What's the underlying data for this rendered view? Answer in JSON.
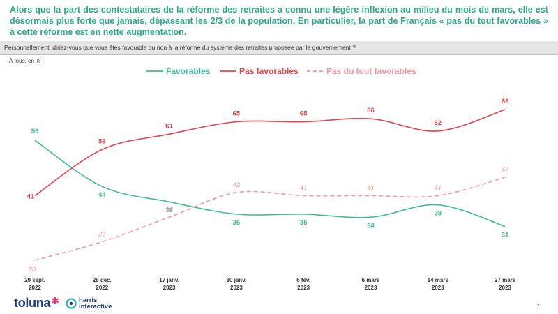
{
  "header": {
    "headline": "Alors que la part des contestataires de la réforme des retraites a connu une légère inflexion au milieu du mois de mars, elle est désormais plus forte que jamais, dépassant les 2/3 de la population. En particulier, la part de Français « pas du tout favorables » à cette réforme est en nette augmentation.",
    "question": "Personnellement, diriez-vous que vous êtes favorable ou non à la réforme du système des retraites proposée par le gouvernement ?",
    "base": "- À tous, en % -"
  },
  "chart_data": {
    "type": "line",
    "categories": [
      [
        "29 sept.",
        "2022"
      ],
      [
        "28 déc.",
        "2022"
      ],
      [
        "17 janv.",
        "2023"
      ],
      [
        "30 janv.",
        "2023"
      ],
      [
        "6 fév.",
        "2023"
      ],
      [
        "6 mars",
        "2023"
      ],
      [
        "14 mars",
        "2023"
      ],
      [
        "27 mars",
        "2023"
      ]
    ],
    "series": [
      {
        "name": "Favorables",
        "color": "#45b79a",
        "dashed": false,
        "italic": false,
        "values": [
          59,
          44,
          39,
          35,
          35,
          34,
          38,
          31
        ]
      },
      {
        "name": "Pas favorables",
        "color": "#d9454e",
        "dashed": false,
        "italic": false,
        "values": [
          41,
          56,
          61,
          65,
          65,
          66,
          62,
          69
        ]
      },
      {
        "name": "Pas du tout favorables",
        "color": "#ee9a9f",
        "dashed": true,
        "italic": true,
        "values": [
          20,
          26,
          34,
          42,
          41,
          41,
          41,
          47
        ]
      }
    ],
    "legend_position": "top",
    "grid": false
  },
  "footer": {
    "logo_toluna": "toluna",
    "logo_harris_line1": "harris",
    "logo_harris_line2": "interactive",
    "page_number": "7"
  }
}
